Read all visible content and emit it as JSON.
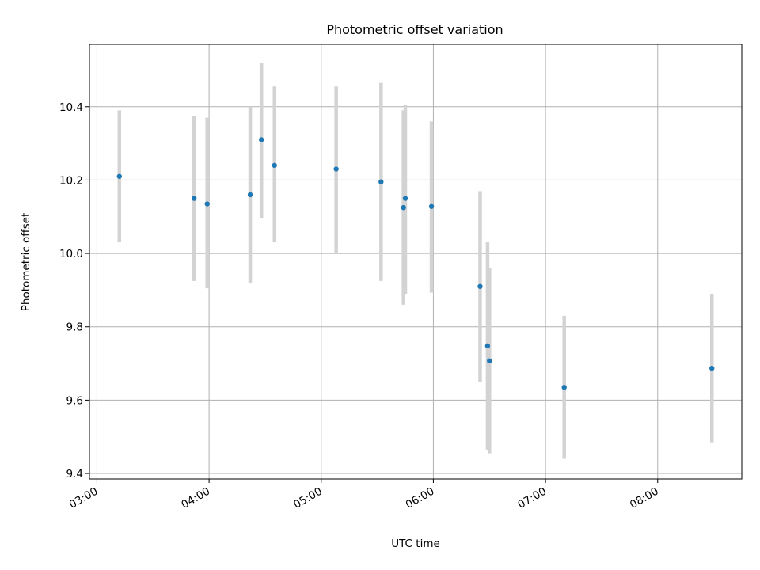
{
  "chart_data": {
    "type": "scatter",
    "title": "Photometric offset variation",
    "xlabel": "UTC time",
    "ylabel": "Photometric offset",
    "x_axis": "time",
    "xlim": [
      "02:56",
      "08:45"
    ],
    "ylim": [
      9.385,
      10.57
    ],
    "xticks": [
      "03:00",
      "04:00",
      "05:00",
      "06:00",
      "07:00",
      "08:00"
    ],
    "yticks": [
      "9.4",
      "9.6",
      "9.8",
      "10.0",
      "10.2",
      "10.4"
    ],
    "grid": true,
    "colors": {
      "marker": "#1f77b4",
      "errorbar": "#d3d3d3",
      "grid": "#b0b0b0"
    },
    "points": [
      {
        "x": "03:12",
        "y": 10.21,
        "ylow": 10.03,
        "yhigh": 10.39
      },
      {
        "x": "03:52",
        "y": 10.15,
        "ylow": 9.925,
        "yhigh": 10.375
      },
      {
        "x": "03:59",
        "y": 10.135,
        "ylow": 9.905,
        "yhigh": 10.37
      },
      {
        "x": "04:22",
        "y": 10.16,
        "ylow": 9.92,
        "yhigh": 10.4
      },
      {
        "x": "04:28",
        "y": 10.31,
        "ylow": 10.095,
        "yhigh": 10.52
      },
      {
        "x": "04:35",
        "y": 10.24,
        "ylow": 10.03,
        "yhigh": 10.455
      },
      {
        "x": "05:08",
        "y": 10.23,
        "ylow": 10.0,
        "yhigh": 10.455
      },
      {
        "x": "05:32",
        "y": 10.195,
        "ylow": 9.925,
        "yhigh": 10.465
      },
      {
        "x": "05:44",
        "y": 10.125,
        "ylow": 9.86,
        "yhigh": 10.39
      },
      {
        "x": "05:45",
        "y": 10.15,
        "ylow": 9.89,
        "yhigh": 10.405
      },
      {
        "x": "05:59",
        "y": 10.128,
        "ylow": 9.893,
        "yhigh": 10.36
      },
      {
        "x": "06:25",
        "y": 9.91,
        "ylow": 9.65,
        "yhigh": 10.17
      },
      {
        "x": "06:29",
        "y": 9.748,
        "ylow": 9.465,
        "yhigh": 10.03
      },
      {
        "x": "06:30",
        "y": 9.707,
        "ylow": 9.455,
        "yhigh": 9.96
      },
      {
        "x": "07:10",
        "y": 9.635,
        "ylow": 9.44,
        "yhigh": 9.83
      },
      {
        "x": "08:29",
        "y": 9.687,
        "ylow": 9.485,
        "yhigh": 9.89
      }
    ]
  }
}
